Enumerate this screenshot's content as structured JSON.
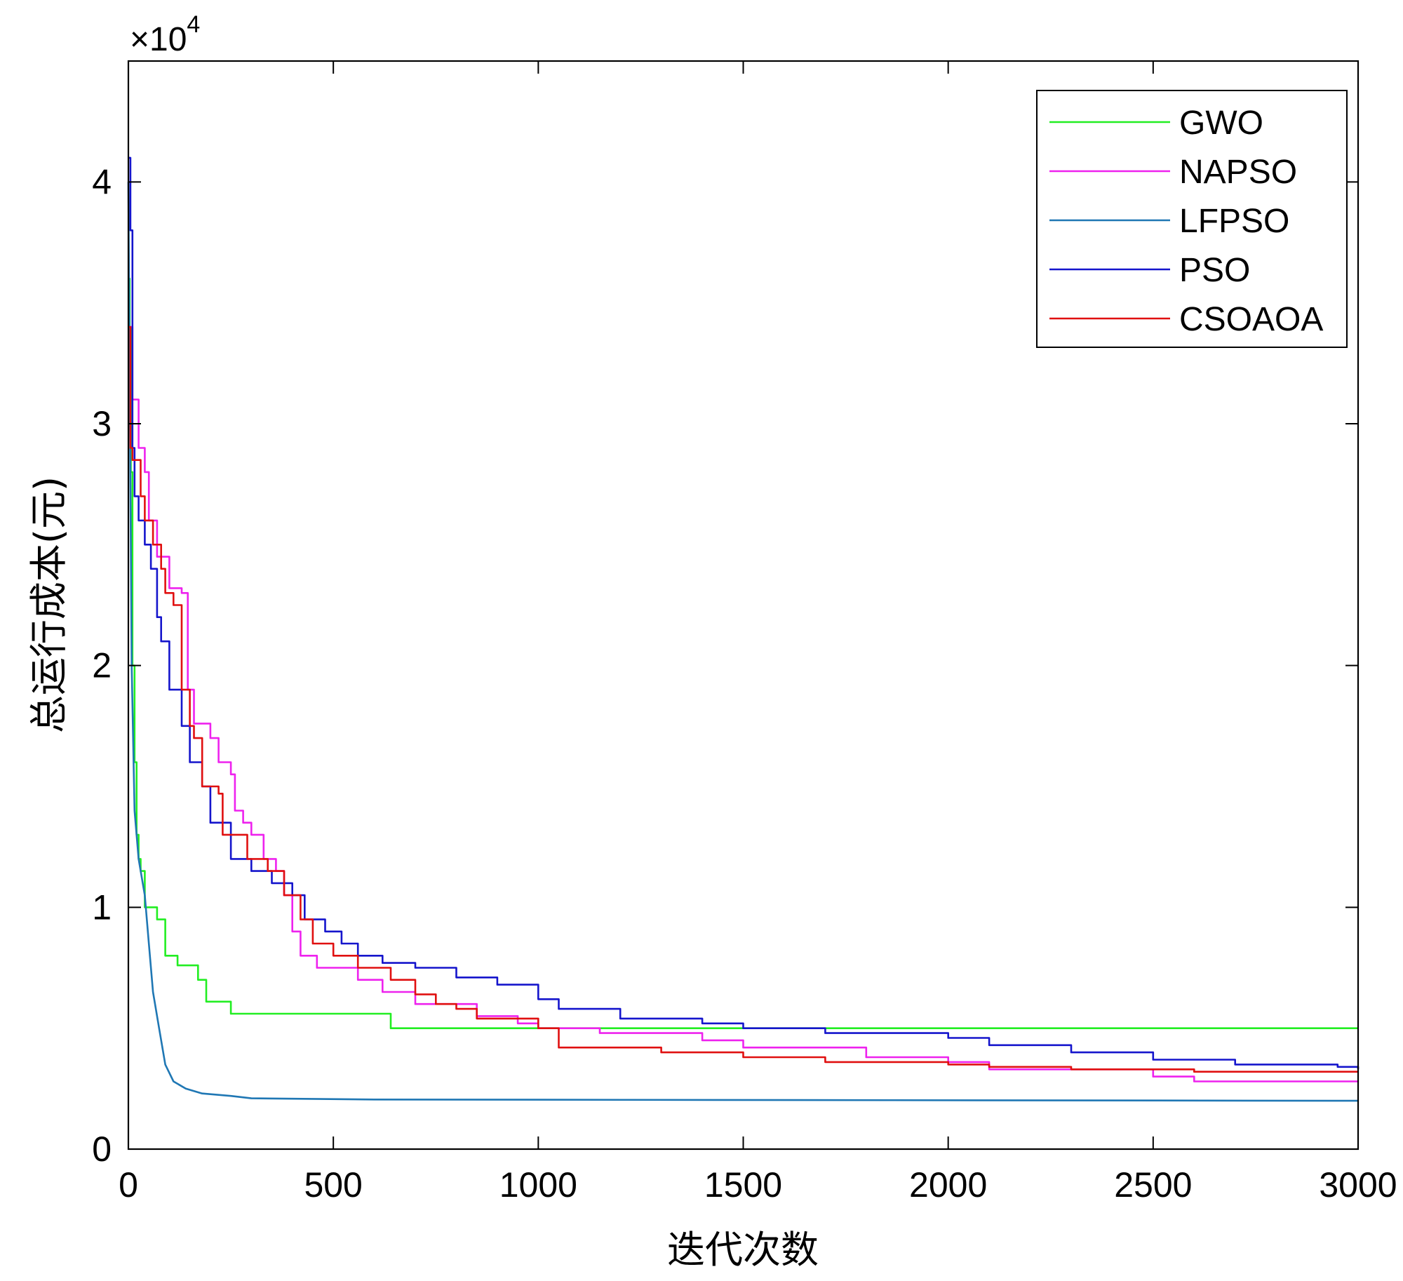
{
  "chart_data": {
    "type": "line",
    "xlabel": "迭代次数",
    "ylabel": "总运行成本(元)",
    "xlim": [
      0,
      3000
    ],
    "ylim": [
      0,
      45000
    ],
    "x_ticks": [
      "0",
      "500",
      "1000",
      "1500",
      "2000",
      "2500",
      "3000"
    ],
    "y_ticks": [
      "0",
      "1",
      "2",
      "3",
      "4"
    ],
    "y_multiplier": {
      "base": "×10",
      "exponent": "4"
    },
    "grid": false,
    "legend_position": "top-right",
    "series": [
      {
        "name": "GWO",
        "color": "#22ee22",
        "step": true,
        "points": [
          [
            0,
            36000
          ],
          [
            3,
            34000
          ],
          [
            6,
            28000
          ],
          [
            10,
            20000
          ],
          [
            15,
            16000
          ],
          [
            20,
            13000
          ],
          [
            25,
            12000
          ],
          [
            30,
            11500
          ],
          [
            40,
            10000
          ],
          [
            70,
            9500
          ],
          [
            90,
            8000
          ],
          [
            120,
            7600
          ],
          [
            170,
            7000
          ],
          [
            190,
            6100
          ],
          [
            250,
            5600
          ],
          [
            640,
            5000
          ],
          [
            3000,
            5000
          ]
        ]
      },
      {
        "name": "NAPSO",
        "color": "#ee22ee",
        "step": true,
        "points": [
          [
            0,
            34000
          ],
          [
            10,
            31000
          ],
          [
            25,
            29000
          ],
          [
            40,
            28000
          ],
          [
            50,
            26000
          ],
          [
            70,
            24500
          ],
          [
            100,
            23200
          ],
          [
            130,
            23000
          ],
          [
            145,
            19000
          ],
          [
            160,
            17600
          ],
          [
            200,
            17000
          ],
          [
            220,
            16000
          ],
          [
            250,
            15500
          ],
          [
            260,
            14000
          ],
          [
            280,
            13500
          ],
          [
            300,
            13000
          ],
          [
            330,
            12000
          ],
          [
            360,
            11500
          ],
          [
            380,
            10500
          ],
          [
            400,
            9000
          ],
          [
            420,
            8000
          ],
          [
            460,
            7500
          ],
          [
            560,
            7000
          ],
          [
            620,
            6500
          ],
          [
            700,
            6000
          ],
          [
            850,
            5500
          ],
          [
            950,
            5200
          ],
          [
            1000,
            5000
          ],
          [
            1150,
            4800
          ],
          [
            1400,
            4500
          ],
          [
            1500,
            4200
          ],
          [
            1800,
            3800
          ],
          [
            2000,
            3600
          ],
          [
            2100,
            3300
          ],
          [
            2500,
            3000
          ],
          [
            2600,
            2800
          ],
          [
            3000,
            2800
          ]
        ]
      },
      {
        "name": "LFPSO",
        "color": "#1f77b4",
        "step": false,
        "points": [
          [
            0,
            40000
          ],
          [
            4,
            30000
          ],
          [
            8,
            20000
          ],
          [
            15,
            14000
          ],
          [
            25,
            12000
          ],
          [
            40,
            10500
          ],
          [
            50,
            8500
          ],
          [
            60,
            6500
          ],
          [
            75,
            5000
          ],
          [
            90,
            3500
          ],
          [
            110,
            2800
          ],
          [
            140,
            2500
          ],
          [
            180,
            2300
          ],
          [
            250,
            2200
          ],
          [
            300,
            2100
          ],
          [
            600,
            2050
          ],
          [
            3000,
            2000
          ]
        ]
      },
      {
        "name": "PSO",
        "color": "#1515cc",
        "step": true,
        "points": [
          [
            0,
            41000
          ],
          [
            5,
            38000
          ],
          [
            10,
            29000
          ],
          [
            15,
            27000
          ],
          [
            25,
            26000
          ],
          [
            40,
            25000
          ],
          [
            55,
            24000
          ],
          [
            70,
            22000
          ],
          [
            80,
            21000
          ],
          [
            100,
            19000
          ],
          [
            130,
            17500
          ],
          [
            150,
            16000
          ],
          [
            180,
            15000
          ],
          [
            200,
            13500
          ],
          [
            250,
            12000
          ],
          [
            300,
            11500
          ],
          [
            350,
            11000
          ],
          [
            400,
            10500
          ],
          [
            430,
            9500
          ],
          [
            480,
            9000
          ],
          [
            520,
            8500
          ],
          [
            560,
            8000
          ],
          [
            620,
            7700
          ],
          [
            700,
            7500
          ],
          [
            800,
            7100
          ],
          [
            900,
            6800
          ],
          [
            1000,
            6200
          ],
          [
            1050,
            5800
          ],
          [
            1200,
            5400
          ],
          [
            1400,
            5200
          ],
          [
            1500,
            5000
          ],
          [
            1700,
            4800
          ],
          [
            2000,
            4600
          ],
          [
            2100,
            4300
          ],
          [
            2300,
            4000
          ],
          [
            2500,
            3700
          ],
          [
            2700,
            3500
          ],
          [
            2800,
            3500
          ],
          [
            2950,
            3400
          ],
          [
            3000,
            3300
          ]
        ]
      },
      {
        "name": "CSOAOA",
        "color": "#e01010",
        "step": true,
        "points": [
          [
            0,
            34000
          ],
          [
            5,
            29000
          ],
          [
            10,
            28500
          ],
          [
            30,
            27000
          ],
          [
            40,
            26000
          ],
          [
            60,
            25000
          ],
          [
            80,
            24000
          ],
          [
            90,
            23000
          ],
          [
            110,
            22500
          ],
          [
            130,
            19000
          ],
          [
            150,
            17500
          ],
          [
            160,
            17000
          ],
          [
            180,
            15000
          ],
          [
            220,
            14700
          ],
          [
            230,
            13000
          ],
          [
            290,
            12000
          ],
          [
            340,
            11500
          ],
          [
            380,
            10500
          ],
          [
            420,
            9500
          ],
          [
            450,
            8500
          ],
          [
            500,
            8000
          ],
          [
            560,
            7500
          ],
          [
            640,
            7000
          ],
          [
            700,
            6400
          ],
          [
            750,
            6000
          ],
          [
            800,
            5800
          ],
          [
            850,
            5400
          ],
          [
            1000,
            5000
          ],
          [
            1050,
            4200
          ],
          [
            1300,
            4000
          ],
          [
            1500,
            3800
          ],
          [
            1700,
            3600
          ],
          [
            2000,
            3500
          ],
          [
            2100,
            3400
          ],
          [
            2300,
            3300
          ],
          [
            2500,
            3300
          ],
          [
            2600,
            3200
          ],
          [
            3000,
            3200
          ]
        ]
      }
    ]
  }
}
